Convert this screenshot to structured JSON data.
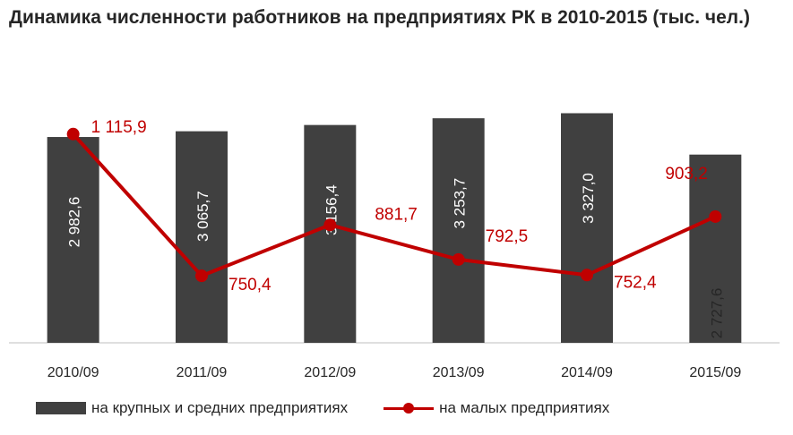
{
  "chart_data": {
    "type": "bar",
    "title": "Динамика численности работников на предприятиях РК в 2010-2015 (тыс. чел.)",
    "categories": [
      "2010/09",
      "2011/09",
      "2012/09",
      "2013/09",
      "2014/09",
      "2015/09"
    ],
    "series": [
      {
        "name": "на крупных и средних предприятиях",
        "type": "bar",
        "color": "#404040",
        "values": [
          2982.6,
          3065.7,
          3156.4,
          3253.7,
          3327.0,
          2727.6
        ],
        "labels": [
          "2 982,6",
          "3 065,7",
          "3 156,4",
          "3 253,7",
          "3 327,0",
          "2 727,6"
        ]
      },
      {
        "name": "на малых предприятиях",
        "type": "line",
        "color": "#c00000",
        "values": [
          1115.9,
          750.4,
          881.7,
          792.5,
          752.4,
          903.2
        ],
        "labels": [
          "1 115,9",
          "750,4",
          "881,7",
          "792,5",
          "752,4",
          "903,2"
        ]
      }
    ],
    "grid": false,
    "legend_position": "bottom"
  }
}
